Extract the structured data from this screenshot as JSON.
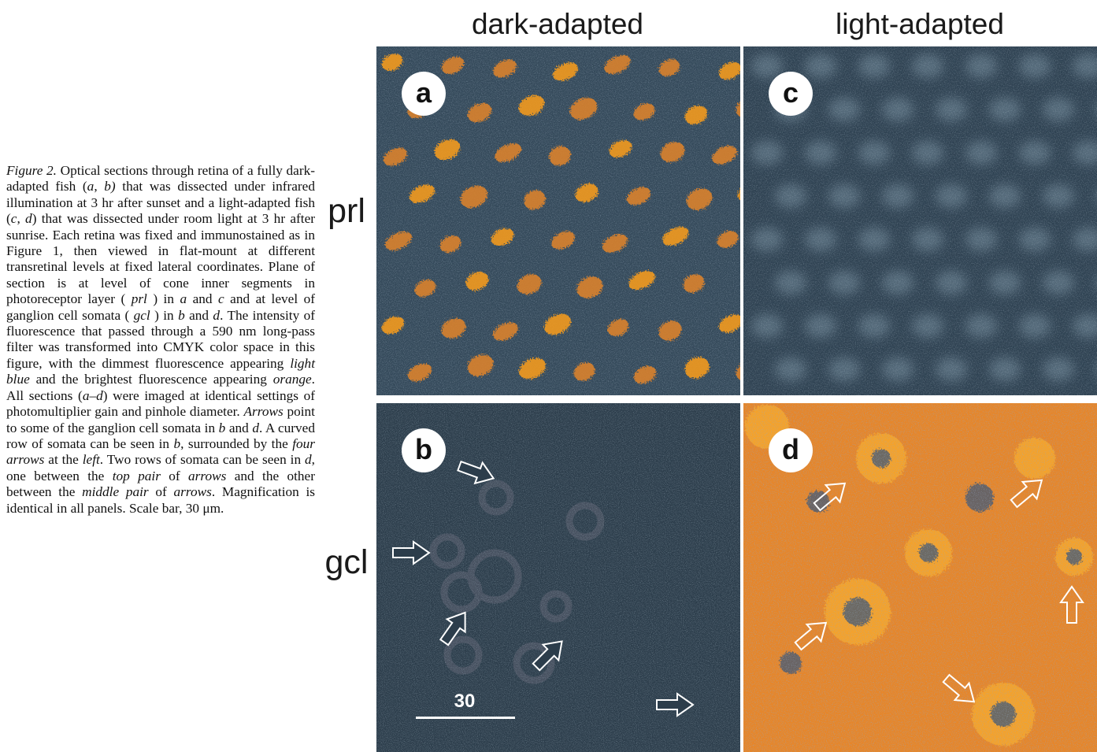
{
  "caption": {
    "fig_label": "Figure 2.",
    "segments": [
      {
        "t": "Optical sections through retina of a fully dark-adapted fish (",
        "i": false
      },
      {
        "t": "a",
        "i": true
      },
      {
        "t": ", ",
        "i": false
      },
      {
        "t": "b)",
        "i": true
      },
      {
        "t": " that was dissected under infrared illumination at 3 hr after sunset and a light-adapted fish (",
        "i": false
      },
      {
        "t": "c",
        "i": true
      },
      {
        "t": ", ",
        "i": false
      },
      {
        "t": "d",
        "i": true
      },
      {
        "t": ") that was dissected under room light at 3 hr after sunrise. Each retina was fixed and immunostained as in Figure 1, then viewed in flat-mount at different transretinal levels at fixed lateral coordinates. Plane of section is at level of cone inner segments in photoreceptor layer ( ",
        "i": false
      },
      {
        "t": "prl",
        "i": true
      },
      {
        "t": " ) in ",
        "i": false
      },
      {
        "t": "a",
        "i": true
      },
      {
        "t": " and ",
        "i": false
      },
      {
        "t": "c",
        "i": true
      },
      {
        "t": " and at level of ganglion cell somata ( ",
        "i": false
      },
      {
        "t": "gcl",
        "i": true
      },
      {
        "t": " ) in ",
        "i": false
      },
      {
        "t": "b",
        "i": true
      },
      {
        "t": " and ",
        "i": false
      },
      {
        "t": "d",
        "i": true
      },
      {
        "t": ". The intensity of fluorescence that passed through a 590 nm long-pass filter was transformed into CMYK color space in this figure, with the dimmest fluorescence appearing ",
        "i": false
      },
      {
        "t": "light blue",
        "i": true
      },
      {
        "t": " and the brightest fluorescence appearing ",
        "i": false
      },
      {
        "t": "orange",
        "i": true
      },
      {
        "t": ". All sections (",
        "i": false
      },
      {
        "t": "a–d",
        "i": true
      },
      {
        "t": ") were imaged at identical settings of photomultiplier gain and pinhole diameter. ",
        "i": false
      },
      {
        "t": "Arrows",
        "i": true
      },
      {
        "t": " point to some of the ganglion cell somata in ",
        "i": false
      },
      {
        "t": "b",
        "i": true
      },
      {
        "t": " and ",
        "i": false
      },
      {
        "t": "d",
        "i": true
      },
      {
        "t": ". A curved row of somata can be seen in ",
        "i": false
      },
      {
        "t": "b",
        "i": true
      },
      {
        "t": ", surrounded by the ",
        "i": false
      },
      {
        "t": "four arrows",
        "i": true
      },
      {
        "t": " at the ",
        "i": false
      },
      {
        "t": "left",
        "i": true
      },
      {
        "t": ". Two rows of somata can be seen in ",
        "i": false
      },
      {
        "t": "d",
        "i": true
      },
      {
        "t": ", one between the ",
        "i": false
      },
      {
        "t": "top pair",
        "i": true
      },
      {
        "t": " of ",
        "i": false
      },
      {
        "t": "arrows",
        "i": true
      },
      {
        "t": " and the other between the ",
        "i": false
      },
      {
        "t": "middle pair",
        "i": true
      },
      {
        "t": " of ",
        "i": false
      },
      {
        "t": "arrows",
        "i": true
      },
      {
        "t": ". Magnification is identical in all panels. Scale bar, 30 μm.",
        "i": false
      }
    ]
  },
  "columns": {
    "left": "dark-adapted",
    "right": "light-adapted"
  },
  "rows": {
    "top": "prl",
    "bottom": "gcl"
  },
  "panels": {
    "a": "a",
    "b": "b",
    "c": "c",
    "d": "d"
  },
  "scale_bar_label": "30",
  "colors": {
    "dim": "#34495a",
    "bright": "#f3941f",
    "background": "#ffffff"
  }
}
